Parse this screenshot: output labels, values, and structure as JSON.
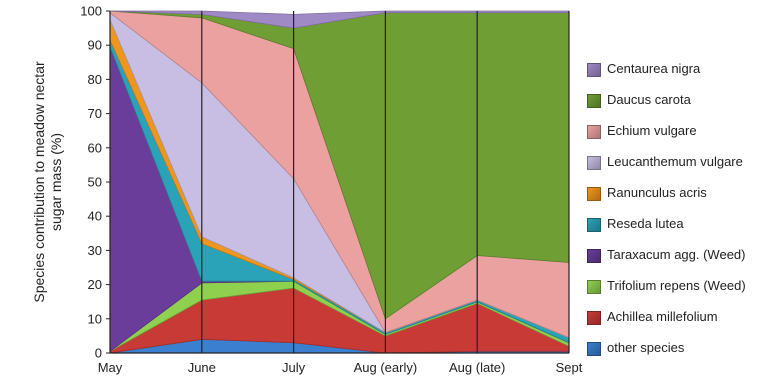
{
  "chart_data": {
    "type": "area",
    "stacked": true,
    "categories": [
      "May",
      "June",
      "July",
      "Aug (early)",
      "Aug (late)",
      "Sept"
    ],
    "ylabel": "Species contribution to meadow  nectar\nsugar mass (%)",
    "ylim": [
      0,
      100
    ],
    "yticks": [
      0,
      10,
      20,
      30,
      40,
      50,
      60,
      70,
      80,
      90,
      100
    ],
    "grid": false,
    "legend_position": "right",
    "series": [
      {
        "name": "other species",
        "color": "#3a7fd0",
        "values": [
          0,
          4,
          3,
          0,
          0.5,
          0.5
        ]
      },
      {
        "name": "Achillea millefolium",
        "color": "#c83a36",
        "values": [
          0.5,
          11.5,
          16,
          5,
          14,
          1.5
        ]
      },
      {
        "name": "Trifolium repens (Weed)",
        "color": "#8fd14f",
        "values": [
          0,
          5,
          2,
          0.5,
          0.5,
          1
        ]
      },
      {
        "name": "Taraxacum agg. (Weed)",
        "color": "#6a3d9a",
        "values": [
          89,
          0.5,
          0,
          0,
          0,
          0
        ]
      },
      {
        "name": "Reseda lutea",
        "color": "#2aa3b8",
        "values": [
          2,
          11,
          0.5,
          0.5,
          0.5,
          1.5
        ]
      },
      {
        "name": "Ranunculus acris",
        "color": "#f0961e",
        "values": [
          6,
          2,
          0.5,
          0,
          0,
          0
        ]
      },
      {
        "name": "Leucanthemum vulgare",
        "color": "#c8bde3",
        "values": [
          2,
          45,
          29,
          0,
          0,
          0
        ]
      },
      {
        "name": "Echium vulgare",
        "color": "#eca1a1",
        "values": [
          0.5,
          19,
          38,
          4,
          13,
          22
        ]
      },
      {
        "name": "Daucus carota",
        "color": "#6f9e35",
        "values": [
          0,
          1,
          6,
          89.5,
          71,
          73
        ]
      },
      {
        "name": "Centaurea nigra",
        "color": "#a08ac6",
        "values": [
          0,
          1,
          4,
          0.5,
          0.5,
          0.5
        ]
      }
    ],
    "legend_order": [
      "Centaurea nigra",
      "Daucus carota",
      "Echium vulgare",
      "Leucanthemum vulgare",
      "Ranunculus acris",
      "Reseda lutea",
      "Taraxacum agg. (Weed)",
      "Trifolium repens (Weed)",
      "Achillea millefolium",
      "other species"
    ]
  }
}
